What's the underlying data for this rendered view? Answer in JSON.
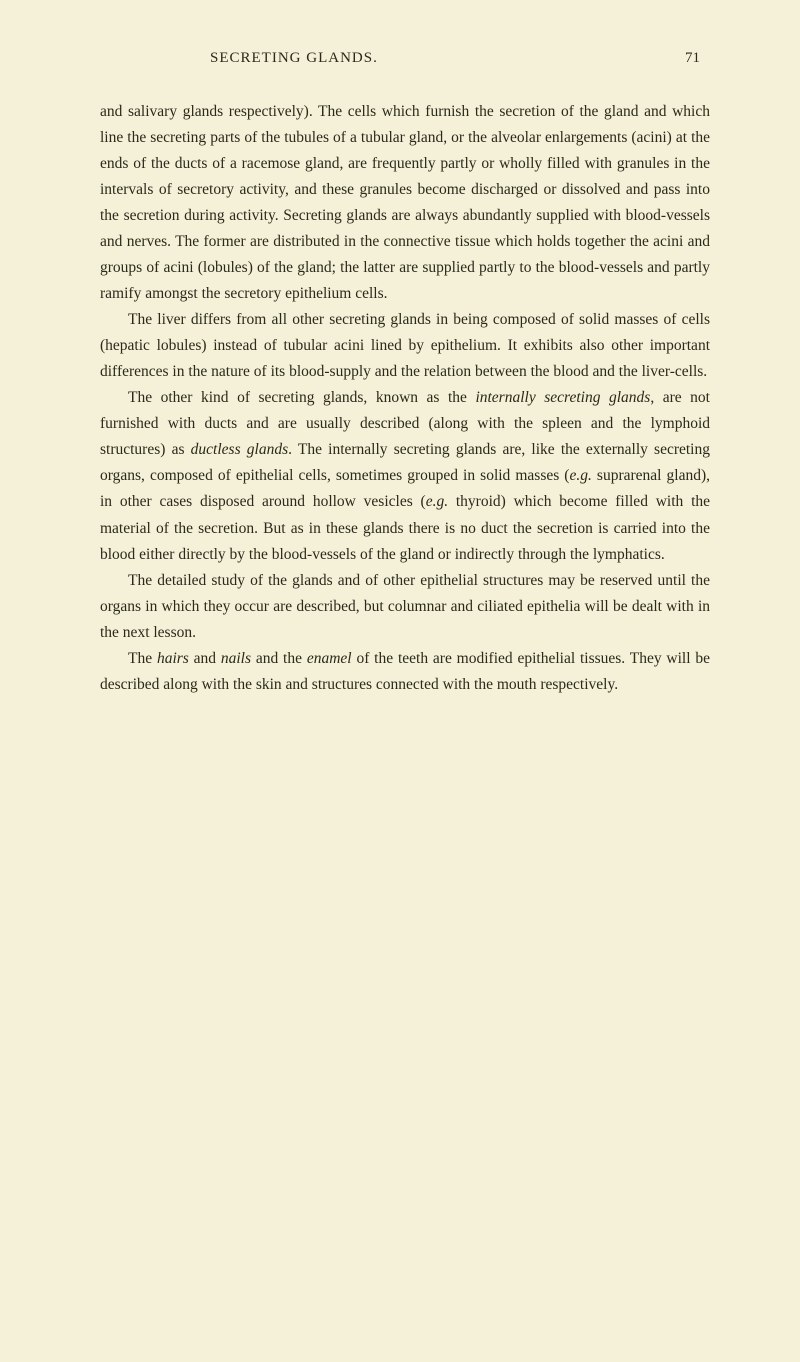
{
  "header": {
    "title": "SECRETING GLANDS.",
    "page_number": "71"
  },
  "paragraphs": {
    "p1": {
      "text": "and salivary glands respectively). The cells which furnish the secretion of the gland and which line the secreting parts of the tubules of a tubular gland, or the alveolar enlargements (acini) at the ends of the ducts of a racemose gland, are frequently partly or wholly filled with granules in the intervals of secretory activity, and these granules become discharged or dissolved and pass into the secretion during activity. Secreting glands are always abundantly supplied with blood-vessels and nerves. The former are distributed in the connective tissue which holds together the acini and groups of acini (lobules) of the gland; the latter are supplied partly to the blood-vessels and partly ramify amongst the secretory epithelium cells."
    },
    "p2": {
      "text": "The liver differs from all other secreting glands in being composed of solid masses of cells (hepatic lobules) instead of tubular acini lined by epithelium. It exhibits also other important differences in the nature of its blood-supply and the relation between the blood and the liver-cells."
    },
    "p3": {
      "pre": "The other kind of secreting glands, known as the ",
      "italic1": "internally secreting glands",
      "mid1": ", are not furnished with ducts and are usually described (along with the spleen and the lymphoid structures) as ",
      "italic2": "ductless glands",
      "mid2": ". The internally secreting glands are, like the externally secreting organs, composed of epithelial cells, sometimes grouped in solid masses (",
      "italic3": "e.g.",
      "mid3": " suprarenal gland), in other cases disposed around hollow vesicles (",
      "italic4": "e.g.",
      "post": " thyroid) which become filled with the material of the secretion. But as in these glands there is no duct the secretion is carried into the blood either directly by the blood-vessels of the gland or indirectly through the lymphatics."
    },
    "p4": {
      "text": "The detailed study of the glands and of other epithelial structures may be reserved until the organs in which they occur are described, but columnar and ciliated epithelia will be dealt with in the next lesson."
    },
    "p5": {
      "pre": "The ",
      "italic1": "hairs",
      "mid1": " and ",
      "italic2": "nails",
      "mid2": " and the ",
      "italic3": "enamel",
      "post": " of the teeth are modified epithelial tissues. They will be described along with the skin and structures connected with the mouth respectively."
    }
  },
  "styling": {
    "background_color": "#f5f0d8",
    "text_color": "#2a2a1a",
    "body_font_size": 15.5,
    "header_font_size": 15,
    "line_height": 1.68,
    "text_indent": 28
  }
}
